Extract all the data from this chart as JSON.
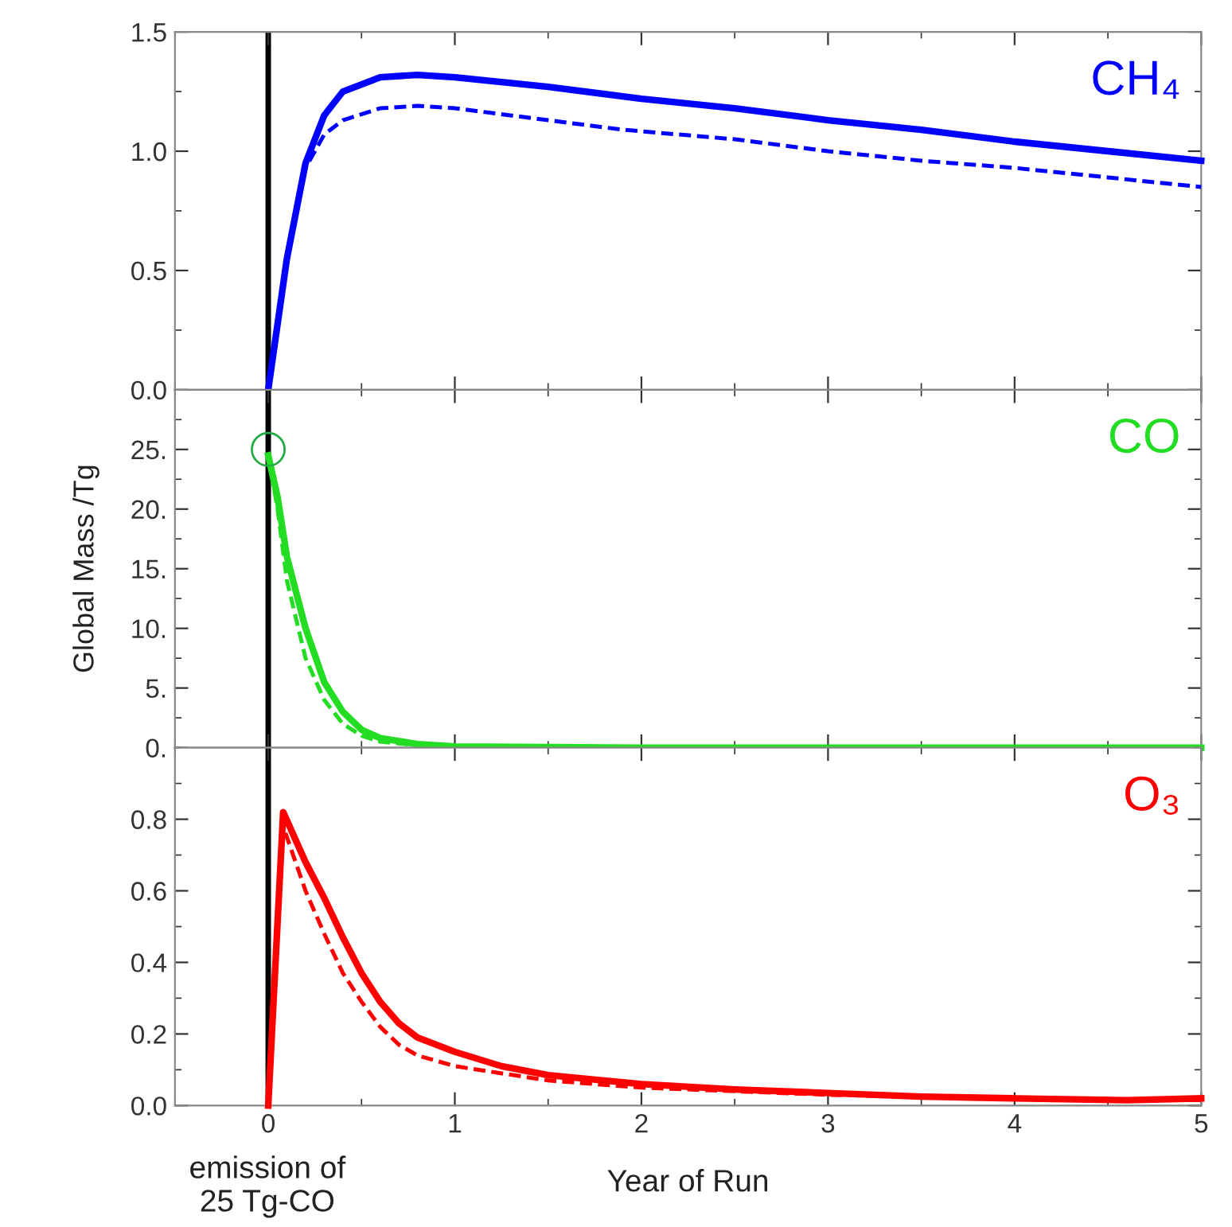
{
  "chart_data": [
    {
      "type": "line",
      "xlim": [
        -0.5,
        5
      ],
      "xticks": [
        0,
        1,
        2,
        3,
        4,
        5
      ],
      "ylim": [
        0,
        1.5
      ],
      "yticks": [
        {
          "value": 0,
          "label": "0.0"
        },
        0.5,
        {
          "value": 1,
          "label": "1.0"
        },
        1.5
      ],
      "tick_labels": "y",
      "grid": false,
      "legend": false,
      "ref_lines": [
        {
          "axis": "x",
          "value": 0,
          "color": "#000000"
        }
      ],
      "series": [
        {
          "name": "CH₄",
          "color": "#0000ff",
          "line_style": "solid",
          "x": [
            0,
            0.1,
            0.2,
            0.3,
            0.4,
            0.6,
            0.8,
            1.0,
            1.5,
            2,
            2.5,
            3,
            3.5,
            4,
            4.5,
            5
          ],
          "values": [
            0,
            0.55,
            0.95,
            1.15,
            1.25,
            1.31,
            1.32,
            1.31,
            1.27,
            1.22,
            1.18,
            1.13,
            1.09,
            1.04,
            1.0,
            0.96
          ]
        },
        {
          "color": "#0000ff",
          "line_style": "dashed",
          "x": [
            0,
            0.1,
            0.2,
            0.3,
            0.4,
            0.6,
            0.8,
            1.0,
            1.5,
            1.9,
            2.5,
            3,
            3.5,
            4,
            4.5,
            5
          ],
          "values": [
            0,
            0.55,
            0.93,
            1.07,
            1.13,
            1.18,
            1.19,
            1.18,
            1.13,
            1.09,
            1.05,
            1.0,
            0.96,
            0.93,
            0.89,
            0.85
          ]
        }
      ]
    },
    {
      "type": "line",
      "xlim": [
        -0.5,
        5
      ],
      "xticks": [
        0,
        1,
        2,
        3,
        4,
        5
      ],
      "ylim": [
        0,
        30
      ],
      "yticks": [
        {
          "value": 0,
          "label": "0."
        },
        {
          "value": 5,
          "label": "5."
        },
        {
          "value": 10,
          "label": "10."
        },
        {
          "value": 15,
          "label": "15."
        },
        {
          "value": 20,
          "label": "20."
        },
        {
          "value": 25,
          "label": "25."
        }
      ],
      "tick_labels": "y",
      "grid": false,
      "legend": false,
      "ylabel": "Global Mass /Tg",
      "ref_lines": [
        {
          "axis": "x",
          "value": 0,
          "color": "#000000"
        }
      ],
      "series": [
        {
          "name": "CO",
          "color": "#22dd22",
          "line_style": "solid",
          "x": [
            0,
            0.05,
            0.1,
            0.2,
            0.3,
            0.4,
            0.5,
            0.6,
            0.8,
            1,
            2,
            3,
            4,
            5
          ],
          "values": [
            24.5,
            21,
            16,
            10,
            5.5,
            3,
            1.5,
            0.8,
            0.3,
            0.1,
            0,
            0,
            0,
            0
          ]
        },
        {
          "color": "#22dd22",
          "line_style": "dashed",
          "x": [
            0,
            0.05,
            0.1,
            0.2,
            0.3,
            0.4,
            0.5,
            0.6,
            0.8,
            1,
            2,
            3,
            4,
            5
          ],
          "values": [
            24.5,
            20,
            14,
            7.5,
            4,
            2,
            1,
            0.5,
            0.2,
            0.1,
            0,
            0,
            0,
            0
          ]
        },
        {
          "type": "scatter",
          "color": "#22aa44",
          "marker": "circle",
          "x": [
            0
          ],
          "values": [
            25
          ]
        }
      ]
    },
    {
      "type": "line",
      "xlim": [
        -0.5,
        5
      ],
      "xticks": [
        0,
        1,
        2,
        3,
        4,
        5
      ],
      "ylim": [
        0,
        1.0
      ],
      "yticks": [
        {
          "value": 0,
          "label": "0.0"
        },
        0.2,
        0.4,
        0.6,
        0.8
      ],
      "grid": false,
      "legend": false,
      "xlabel": "Year of Run",
      "annotations": [
        "emission of\n25 Tg-CO"
      ],
      "ref_lines": [
        {
          "axis": "x",
          "value": 0,
          "color": "#000000"
        }
      ],
      "series": [
        {
          "name": "O₃",
          "color": "#ff0000",
          "line_style": "solid",
          "x": [
            0,
            0.08,
            0.2,
            0.3,
            0.4,
            0.5,
            0.6,
            0.7,
            0.8,
            1.0,
            1.25,
            1.5,
            2,
            2.5,
            3,
            3.5,
            4,
            4.6,
            5
          ],
          "values": [
            0,
            0.82,
            0.68,
            0.58,
            0.47,
            0.37,
            0.29,
            0.23,
            0.19,
            0.15,
            0.11,
            0.085,
            0.06,
            0.045,
            0.035,
            0.025,
            0.02,
            0.015,
            0.02
          ]
        },
        {
          "color": "#ff0000",
          "line_style": "dashed",
          "x": [
            0,
            0.08,
            0.2,
            0.3,
            0.4,
            0.5,
            0.6,
            0.7,
            0.8,
            1,
            1.5,
            2,
            3,
            4,
            5
          ],
          "values": [
            0,
            0.78,
            0.6,
            0.48,
            0.37,
            0.29,
            0.22,
            0.17,
            0.14,
            0.11,
            0.07,
            0.05,
            0.03,
            0.02,
            0.015
          ]
        }
      ]
    }
  ]
}
